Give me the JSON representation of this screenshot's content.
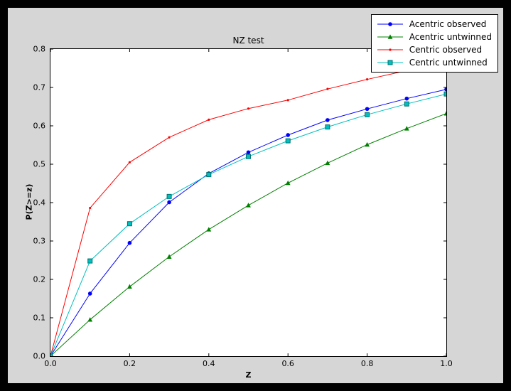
{
  "colors": {
    "frame_bg": "#000000",
    "figure_bg": "#d6d6d6",
    "axes_bg": "#ffffff",
    "axes_edge": "#000000",
    "legend_bg": "#ffffff"
  },
  "chart_data": {
    "type": "line",
    "title": "NZ test",
    "xlabel": "Z",
    "ylabel": "P(Z>=z)",
    "xlim": [
      0.0,
      1.0
    ],
    "ylim": [
      0.0,
      0.8
    ],
    "xticks": [
      "0.0",
      "0.2",
      "0.4",
      "0.6",
      "0.8",
      "1.0"
    ],
    "yticks": [
      "0.0",
      "0.1",
      "0.2",
      "0.3",
      "0.4",
      "0.5",
      "0.6",
      "0.7",
      "0.8"
    ],
    "grid": false,
    "legend_position": "upper right",
    "x": [
      0.0,
      0.1,
      0.2,
      0.3,
      0.4,
      0.5,
      0.6,
      0.7,
      0.8,
      0.9,
      1.0
    ],
    "series": [
      {
        "name": "Acentric observed",
        "color": "#0000ff",
        "marker": "circle",
        "values": [
          0.0,
          0.163,
          0.295,
          0.401,
          0.476,
          0.531,
          0.576,
          0.615,
          0.644,
          0.671,
          0.695
        ]
      },
      {
        "name": "Acentric untwinned",
        "color": "#008000",
        "marker": "triangle",
        "values": [
          0.0,
          0.095,
          0.181,
          0.259,
          0.33,
          0.393,
          0.451,
          0.503,
          0.551,
          0.593,
          0.632
        ]
      },
      {
        "name": "Centric observed",
        "color": "#ff0000",
        "marker": "dot",
        "values": [
          0.0,
          0.386,
          0.505,
          0.57,
          0.616,
          0.645,
          0.667,
          0.696,
          0.721,
          0.744,
          0.763
        ]
      },
      {
        "name": "Centric untwinned",
        "color": "#00bfbf",
        "marker": "square",
        "values": [
          0.0,
          0.248,
          0.345,
          0.416,
          0.473,
          0.52,
          0.561,
          0.597,
          0.629,
          0.657,
          0.683
        ]
      }
    ]
  }
}
